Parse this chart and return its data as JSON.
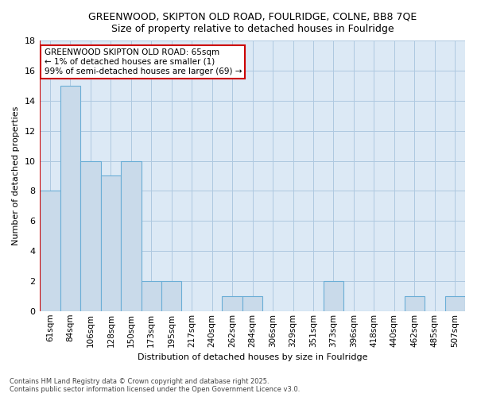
{
  "title": "GREENWOOD, SKIPTON OLD ROAD, FOULRIDGE, COLNE, BB8 7QE",
  "subtitle": "Size of property relative to detached houses in Foulridge",
  "xlabel": "Distribution of detached houses by size in Foulridge",
  "ylabel": "Number of detached properties",
  "footer_line1": "Contains HM Land Registry data © Crown copyright and database right 2025.",
  "footer_line2": "Contains public sector information licensed under the Open Government Licence v3.0.",
  "categories": [
    "61sqm",
    "84sqm",
    "106sqm",
    "128sqm",
    "150sqm",
    "173sqm",
    "195sqm",
    "217sqm",
    "240sqm",
    "262sqm",
    "284sqm",
    "306sqm",
    "329sqm",
    "351sqm",
    "373sqm",
    "396sqm",
    "418sqm",
    "440sqm",
    "462sqm",
    "485sqm",
    "507sqm"
  ],
  "values": [
    8,
    15,
    10,
    9,
    10,
    2,
    2,
    0,
    0,
    1,
    1,
    0,
    0,
    0,
    2,
    0,
    0,
    0,
    1,
    0,
    1
  ],
  "bar_color": "#c9daea",
  "bar_edge_color": "#6baed6",
  "bg_color": "#ffffff",
  "plot_bg_color": "#dce9f5",
  "grid_color": "#aec8e0",
  "annotation_text": "GREENWOOD SKIPTON OLD ROAD: 65sqm\n← 1% of detached houses are smaller (1)\n99% of semi-detached houses are larger (69) →",
  "annotation_box_color": "#ffffff",
  "annotation_border_color": "#cc0000",
  "vline_color": "#cc0000",
  "ylim": [
    0,
    18
  ],
  "yticks": [
    0,
    2,
    4,
    6,
    8,
    10,
    12,
    14,
    16,
    18
  ]
}
